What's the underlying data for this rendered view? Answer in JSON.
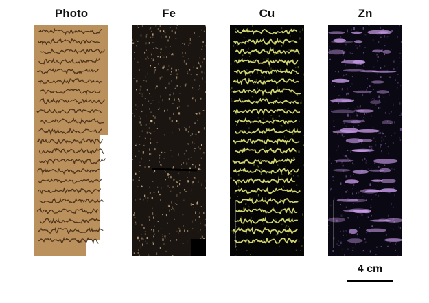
{
  "panels": [
    {
      "id": "photo",
      "title": "Photo",
      "colors": {
        "bg": "#b58a58",
        "ink": "#3a2310"
      }
    },
    {
      "id": "fe",
      "title": "Fe",
      "colors": {
        "bg": "#1a1510",
        "ink": "#e8c8a0"
      }
    },
    {
      "id": "cu",
      "title": "Cu",
      "colors": {
        "bg": "#050505",
        "ink": "#e6eb7a"
      }
    },
    {
      "id": "zn",
      "title": "Zn",
      "colors": {
        "bg": "#0a0812",
        "ink": "#c89be8"
      }
    }
  ],
  "scale_bar": {
    "label": "4 cm"
  }
}
